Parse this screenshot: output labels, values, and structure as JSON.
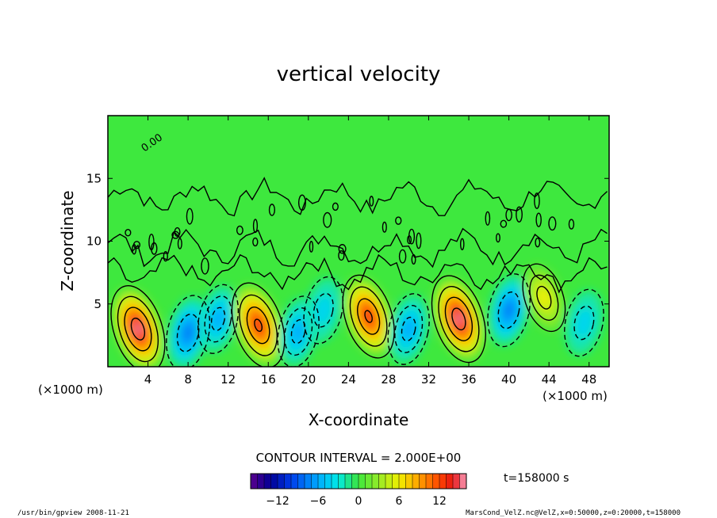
{
  "chart_data": {
    "type": "heatmap",
    "title": "vertical velocity",
    "xlabel": "X-coordinate",
    "ylabel": "Z-coordinate",
    "x_unit": "(×1000 m)",
    "z_unit": "(×1000 m)",
    "xlim": [
      0,
      50
    ],
    "zlim": [
      0,
      20
    ],
    "x_ticks": [
      4,
      8,
      12,
      16,
      20,
      24,
      28,
      32,
      36,
      40,
      44,
      48
    ],
    "z_ticks": [
      5,
      10,
      15
    ],
    "contour_label": "0.00",
    "contour_interval_text": "CONTOUR INTERVAL = 2.000E+00",
    "colorbar": {
      "min": -16,
      "max": 16,
      "ticks": [
        -12,
        -6,
        0,
        6,
        12
      ]
    },
    "time_label": "t=158000  s",
    "cells": [
      {
        "x": 3.0,
        "z": 3.0,
        "w": 15,
        "sign": 1
      },
      {
        "x": 8.0,
        "z": 2.7,
        "w": -8,
        "sign": -1
      },
      {
        "x": 11.0,
        "z": 3.8,
        "w": -5,
        "sign": -1
      },
      {
        "x": 15.0,
        "z": 3.3,
        "w": 14,
        "sign": 1
      },
      {
        "x": 19.0,
        "z": 2.8,
        "w": -6,
        "sign": -1
      },
      {
        "x": 21.5,
        "z": 4.5,
        "w": -4,
        "sign": -1
      },
      {
        "x": 26.0,
        "z": 4.0,
        "w": 13,
        "sign": 1
      },
      {
        "x": 30.0,
        "z": 3.0,
        "w": -6,
        "sign": -1
      },
      {
        "x": 35.0,
        "z": 3.8,
        "w": 15,
        "sign": 1
      },
      {
        "x": 40.0,
        "z": 4.5,
        "w": -7,
        "sign": -1
      },
      {
        "x": 43.5,
        "z": 5.5,
        "w": 5,
        "sign": 1
      },
      {
        "x": 47.5,
        "z": 3.5,
        "w": -4,
        "sign": -1
      }
    ]
  },
  "footer": {
    "left": "/usr/bin/gpview   2008-11-21",
    "right": "MarsCond_VelZ.nc@VelZ,x=0:50000,z=0:20000,t=158000"
  }
}
